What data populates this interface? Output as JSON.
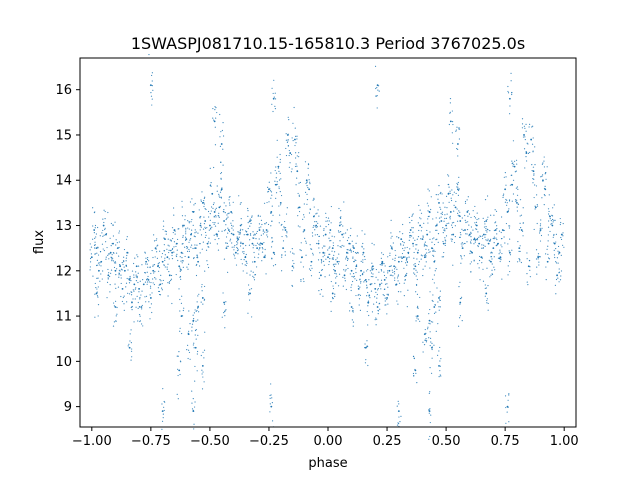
{
  "chart_data": {
    "type": "scatter",
    "title": "1SWASPJ081710.15-165810.3 Period 3767025.0s",
    "xlabel": "phase",
    "ylabel": "flux",
    "xlim": [
      -1.05,
      1.05
    ],
    "ylim": [
      8.55,
      16.7
    ],
    "xticks": [
      -1.0,
      -0.75,
      -0.5,
      -0.25,
      0.0,
      0.25,
      0.5,
      0.75,
      1.0
    ],
    "xtick_labels": [
      "−1.00",
      "−0.75",
      "−0.50",
      "−0.25",
      "0.00",
      "0.25",
      "0.50",
      "0.75",
      "1.00"
    ],
    "yticks": [
      9,
      10,
      11,
      12,
      13,
      14,
      15,
      16
    ],
    "ytick_labels": [
      "9",
      "10",
      "11",
      "12",
      "13",
      "14",
      "15",
      "16"
    ],
    "grid": false,
    "marker_color": "#1f77b4",
    "series": [
      {
        "points": [
          [
            0.0,
            12.3
          ],
          [
            0.02,
            12.5
          ],
          [
            0.04,
            12.2
          ],
          [
            0.06,
            12.8
          ],
          [
            0.08,
            12.4
          ],
          [
            0.1,
            12.0
          ],
          [
            0.12,
            12.1
          ],
          [
            0.14,
            12.0
          ],
          [
            0.16,
            11.8
          ],
          [
            0.18,
            11.7
          ],
          [
            0.2,
            11.6
          ],
          [
            0.22,
            11.7
          ],
          [
            0.24,
            11.8
          ],
          [
            0.26,
            12.0
          ],
          [
            0.28,
            12.1
          ],
          [
            0.3,
            12.2
          ],
          [
            0.32,
            12.3
          ],
          [
            0.34,
            12.4
          ],
          [
            0.36,
            12.6
          ],
          [
            0.38,
            12.4
          ],
          [
            0.4,
            12.7
          ],
          [
            0.42,
            12.8
          ],
          [
            0.44,
            12.5
          ],
          [
            0.46,
            13.0
          ],
          [
            0.48,
            13.1
          ],
          [
            0.5,
            13.0
          ],
          [
            0.52,
            13.3
          ],
          [
            0.54,
            13.4
          ],
          [
            0.56,
            13.1
          ],
          [
            0.58,
            12.9
          ],
          [
            0.6,
            12.8
          ],
          [
            0.62,
            12.7
          ],
          [
            0.64,
            12.6
          ],
          [
            0.66,
            12.8
          ],
          [
            0.68,
            12.6
          ],
          [
            0.7,
            12.5
          ],
          [
            0.72,
            12.6
          ],
          [
            0.74,
            12.9
          ],
          [
            0.76,
            13.3
          ],
          [
            0.78,
            13.9
          ],
          [
            0.8,
            13.5
          ],
          [
            0.82,
            12.9
          ],
          [
            0.84,
            14.6
          ],
          [
            0.86,
            14.9
          ],
          [
            0.88,
            13.4
          ],
          [
            0.9,
            12.9
          ],
          [
            0.92,
            13.8
          ],
          [
            0.94,
            13.2
          ],
          [
            0.96,
            12.6
          ],
          [
            0.98,
            12.4
          ],
          [
            0.43,
            10.9
          ],
          [
            0.45,
            11.2
          ],
          [
            0.38,
            11.0
          ],
          [
            0.47,
            11.4
          ],
          [
            0.41,
            10.6
          ],
          [
            0.44,
            10.3
          ],
          [
            0.37,
            9.8
          ],
          [
            0.47,
            9.9
          ],
          [
            0.77,
            15.8
          ],
          [
            0.55,
            14.8
          ],
          [
            0.52,
            15.3
          ],
          [
            0.3,
            8.9
          ],
          [
            0.43,
            8.9
          ],
          [
            0.21,
            16.1
          ],
          [
            0.76,
            9.0
          ],
          [
            0.16,
            10.3
          ],
          [
            0.1,
            11.2
          ],
          [
            0.02,
            11.5
          ],
          [
            0.56,
            11.3
          ],
          [
            0.67,
            11.5
          ],
          [
            -1.0,
            12.3
          ],
          [
            -0.98,
            12.5
          ],
          [
            -0.96,
            12.2
          ],
          [
            -0.94,
            12.8
          ],
          [
            -0.92,
            12.4
          ],
          [
            -0.9,
            12.0
          ],
          [
            -0.88,
            12.1
          ],
          [
            -0.86,
            12.0
          ],
          [
            -0.84,
            11.8
          ],
          [
            -0.82,
            11.7
          ],
          [
            -0.8,
            11.6
          ],
          [
            -0.78,
            11.7
          ],
          [
            -0.76,
            11.8
          ],
          [
            -0.74,
            12.0
          ],
          [
            -0.72,
            12.1
          ],
          [
            -0.7,
            12.2
          ],
          [
            -0.68,
            12.3
          ],
          [
            -0.66,
            12.4
          ],
          [
            -0.64,
            12.6
          ],
          [
            -0.62,
            12.4
          ],
          [
            -0.6,
            12.7
          ],
          [
            -0.58,
            12.8
          ],
          [
            -0.56,
            12.5
          ],
          [
            -0.54,
            13.0
          ],
          [
            -0.52,
            13.1
          ],
          [
            -0.5,
            13.0
          ],
          [
            -0.48,
            13.3
          ],
          [
            -0.46,
            13.4
          ],
          [
            -0.44,
            13.1
          ],
          [
            -0.42,
            12.9
          ],
          [
            -0.4,
            12.8
          ],
          [
            -0.38,
            12.7
          ],
          [
            -0.36,
            12.6
          ],
          [
            -0.34,
            12.8
          ],
          [
            -0.32,
            12.6
          ],
          [
            -0.3,
            12.5
          ],
          [
            -0.28,
            12.6
          ],
          [
            -0.26,
            12.9
          ],
          [
            -0.24,
            13.3
          ],
          [
            -0.22,
            13.9
          ],
          [
            -0.2,
            13.5
          ],
          [
            -0.18,
            12.9
          ],
          [
            -0.16,
            14.6
          ],
          [
            -0.14,
            14.9
          ],
          [
            -0.12,
            13.4
          ],
          [
            -0.1,
            12.9
          ],
          [
            -0.08,
            13.8
          ],
          [
            -0.06,
            13.2
          ],
          [
            -0.04,
            12.6
          ],
          [
            -0.02,
            12.4
          ],
          [
            -0.57,
            10.9
          ],
          [
            -0.55,
            11.2
          ],
          [
            -0.62,
            11.0
          ],
          [
            -0.53,
            11.4
          ],
          [
            -0.59,
            10.6
          ],
          [
            -0.56,
            10.3
          ],
          [
            -0.63,
            9.8
          ],
          [
            -0.53,
            9.9
          ],
          [
            -0.23,
            15.8
          ],
          [
            -0.45,
            14.8
          ],
          [
            -0.48,
            15.3
          ],
          [
            -0.7,
            8.9
          ],
          [
            -0.57,
            8.9
          ],
          [
            -0.75,
            16.1
          ],
          [
            -0.24,
            9.0
          ],
          [
            -0.84,
            10.3
          ],
          [
            -0.9,
            11.2
          ],
          [
            -0.98,
            11.5
          ],
          [
            -0.44,
            11.3
          ],
          [
            -0.33,
            11.5
          ],
          [
            0.01,
            12.9
          ],
          [
            0.03,
            12.0
          ],
          [
            0.05,
            13.0
          ],
          [
            0.07,
            11.9
          ],
          [
            0.09,
            12.6
          ],
          [
            0.11,
            12.5
          ],
          [
            0.13,
            11.6
          ],
          [
            0.15,
            12.4
          ],
          [
            0.17,
            11.3
          ],
          [
            0.19,
            12.1
          ],
          [
            0.21,
            11.2
          ],
          [
            0.23,
            12.2
          ],
          [
            0.25,
            11.4
          ],
          [
            0.27,
            12.5
          ],
          [
            0.29,
            11.7
          ],
          [
            0.31,
            12.7
          ],
          [
            0.33,
            11.9
          ],
          [
            0.35,
            12.9
          ],
          [
            0.37,
            12.1
          ],
          [
            0.39,
            13.0
          ],
          [
            0.41,
            12.3
          ],
          [
            0.43,
            13.3
          ],
          [
            0.45,
            12.2
          ],
          [
            0.47,
            13.5
          ],
          [
            0.49,
            12.6
          ],
          [
            0.51,
            13.7
          ],
          [
            0.53,
            12.8
          ],
          [
            0.55,
            13.8
          ],
          [
            0.57,
            12.5
          ],
          [
            0.59,
            13.3
          ],
          [
            0.61,
            12.4
          ],
          [
            0.63,
            13.0
          ],
          [
            0.65,
            12.3
          ],
          [
            0.67,
            13.1
          ],
          [
            0.69,
            12.2
          ],
          [
            0.71,
            12.9
          ],
          [
            0.73,
            12.3
          ],
          [
            0.75,
            13.8
          ],
          [
            0.77,
            12.4
          ],
          [
            0.79,
            14.3
          ],
          [
            0.81,
            12.5
          ],
          [
            0.83,
            15.0
          ],
          [
            0.85,
            12.1
          ],
          [
            0.87,
            14.2
          ],
          [
            0.89,
            12.3
          ],
          [
            0.91,
            14.0
          ],
          [
            0.93,
            12.2
          ],
          [
            0.95,
            13.0
          ],
          [
            0.97,
            11.9
          ],
          [
            0.99,
            12.8
          ],
          [
            -0.99,
            12.9
          ],
          [
            -0.97,
            12.0
          ],
          [
            -0.95,
            13.0
          ],
          [
            -0.93,
            11.9
          ],
          [
            -0.91,
            12.6
          ],
          [
            -0.89,
            12.5
          ],
          [
            -0.87,
            11.6
          ],
          [
            -0.85,
            12.4
          ],
          [
            -0.83,
            11.3
          ],
          [
            -0.81,
            12.1
          ],
          [
            -0.79,
            11.2
          ],
          [
            -0.77,
            12.2
          ],
          [
            -0.75,
            11.4
          ],
          [
            -0.73,
            12.5
          ],
          [
            -0.71,
            11.7
          ],
          [
            -0.69,
            12.7
          ],
          [
            -0.67,
            11.9
          ],
          [
            -0.65,
            12.9
          ],
          [
            -0.63,
            12.1
          ],
          [
            -0.61,
            13.0
          ],
          [
            -0.59,
            12.3
          ],
          [
            -0.57,
            13.3
          ],
          [
            -0.55,
            12.2
          ],
          [
            -0.53,
            13.5
          ],
          [
            -0.51,
            12.6
          ],
          [
            -0.49,
            13.7
          ],
          [
            -0.47,
            12.8
          ],
          [
            -0.45,
            13.8
          ],
          [
            -0.43,
            12.5
          ],
          [
            -0.41,
            13.3
          ],
          [
            -0.39,
            12.4
          ],
          [
            -0.37,
            13.0
          ],
          [
            -0.35,
            12.3
          ],
          [
            -0.33,
            13.1
          ],
          [
            -0.31,
            12.2
          ],
          [
            -0.29,
            12.9
          ],
          [
            -0.27,
            12.3
          ],
          [
            -0.25,
            13.8
          ],
          [
            -0.23,
            12.4
          ],
          [
            -0.21,
            14.3
          ],
          [
            -0.19,
            12.5
          ],
          [
            -0.17,
            15.0
          ],
          [
            -0.15,
            12.1
          ],
          [
            -0.13,
            14.2
          ],
          [
            -0.11,
            12.3
          ],
          [
            -0.09,
            14.0
          ],
          [
            -0.07,
            12.2
          ],
          [
            -0.05,
            13.0
          ],
          [
            -0.03,
            11.9
          ],
          [
            -0.01,
            12.8
          ]
        ]
      }
    ]
  }
}
